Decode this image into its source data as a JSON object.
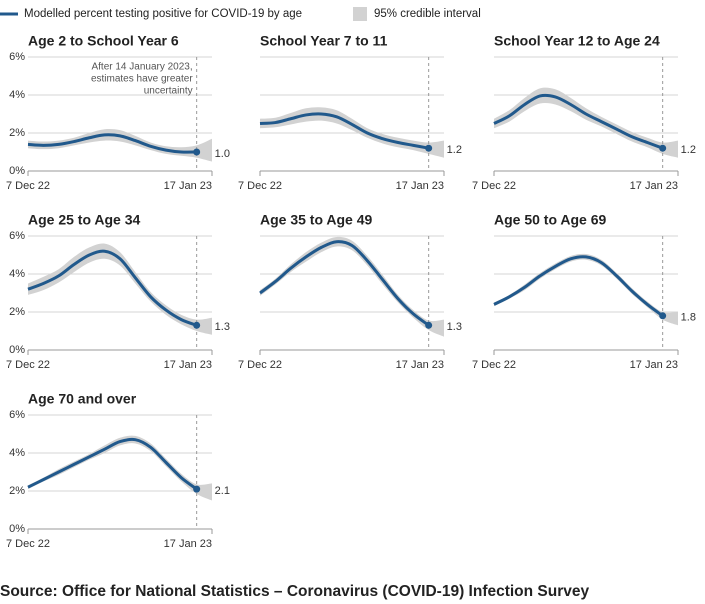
{
  "legend": [
    {
      "name": "Modelled percent testing positive for COVID-19 by age",
      "color": "#21598c"
    },
    {
      "name": "95% credible interval",
      "color": "#d2d2d2"
    }
  ],
  "chart_data": [
    {
      "type": "line",
      "title": "Age 2 to School Year 6",
      "categories": [
        "7 Dec 22",
        null,
        null,
        null,
        null,
        null,
        null,
        null,
        null,
        null,
        null,
        null,
        "17 Jan 23"
      ],
      "values": [
        1.4,
        1.35,
        1.4,
        1.55,
        1.75,
        1.9,
        1.85,
        1.6,
        1.3,
        1.1,
        1.0,
        1.0,
        null
      ],
      "value_labels": [
        null,
        null,
        null,
        null,
        null,
        null,
        null,
        null,
        null,
        null,
        null,
        "1.0",
        null
      ],
      "lower": [
        1.2,
        1.15,
        1.2,
        1.35,
        1.5,
        1.6,
        1.55,
        1.35,
        1.1,
        0.9,
        0.8,
        0.7,
        0.5
      ],
      "upper": [
        1.6,
        1.55,
        1.6,
        1.75,
        2.0,
        2.2,
        2.15,
        1.85,
        1.5,
        1.3,
        1.25,
        1.35,
        1.7
      ],
      "annotation": [
        "After 14 January 2023,",
        "estimates have greater",
        "uncertainty"
      ],
      "ylim": [
        0,
        6
      ],
      "yticks": [
        {
          "value": 0,
          "label": "0%"
        },
        {
          "value": 2,
          "label": "2%"
        },
        {
          "value": 4,
          "label": "4%"
        },
        {
          "value": 6,
          "label": "6%"
        }
      ]
    },
    {
      "type": "line",
      "title": "School Year 7 to 11",
      "categories": [
        "7 Dec 22",
        null,
        null,
        null,
        null,
        null,
        null,
        null,
        null,
        null,
        null,
        null,
        "17 Jan 23"
      ],
      "values": [
        2.5,
        2.55,
        2.75,
        2.95,
        3.0,
        2.85,
        2.45,
        2.0,
        1.7,
        1.5,
        1.35,
        1.2,
        null
      ],
      "lower": [
        2.25,
        2.3,
        2.45,
        2.6,
        2.65,
        2.5,
        2.15,
        1.75,
        1.45,
        1.25,
        1.1,
        0.9,
        0.7
      ],
      "upper": [
        2.75,
        2.8,
        3.05,
        3.3,
        3.35,
        3.2,
        2.75,
        2.25,
        1.95,
        1.75,
        1.6,
        1.5,
        1.6
      ],
      "ylim": [
        0,
        6
      ],
      "yticks": [
        0,
        2,
        4,
        6
      ]
    },
    {
      "type": "line",
      "title": "School Year 12 to Age 24",
      "categories": [
        "7 Dec 22",
        null,
        null,
        null,
        null,
        null,
        null,
        null,
        null,
        null,
        null,
        null,
        "17 Jan 23"
      ],
      "values": [
        2.5,
        2.9,
        3.5,
        3.95,
        3.9,
        3.5,
        3.0,
        2.6,
        2.2,
        1.8,
        1.5,
        1.2,
        null
      ],
      "lower": [
        2.25,
        2.6,
        3.15,
        3.55,
        3.5,
        3.15,
        2.7,
        2.35,
        1.95,
        1.55,
        1.25,
        0.9,
        0.7
      ],
      "upper": [
        2.75,
        3.2,
        3.85,
        4.35,
        4.3,
        3.85,
        3.3,
        2.85,
        2.45,
        2.05,
        1.75,
        1.5,
        1.6
      ],
      "ylim": [
        0,
        6
      ],
      "yticks": [
        0,
        2,
        4,
        6
      ]
    },
    {
      "type": "line",
      "title": "Age 25 to Age 34",
      "categories": [
        "7 Dec 22",
        null,
        null,
        null,
        null,
        null,
        null,
        null,
        null,
        null,
        null,
        null,
        "17 Jan 23"
      ],
      "values": [
        3.2,
        3.5,
        3.9,
        4.5,
        5.0,
        5.2,
        4.8,
        3.8,
        2.8,
        2.1,
        1.6,
        1.3,
        null
      ],
      "lower": [
        2.9,
        3.15,
        3.55,
        4.1,
        4.6,
        4.8,
        4.45,
        3.5,
        2.55,
        1.85,
        1.35,
        1.0,
        0.8
      ],
      "upper": [
        3.5,
        3.85,
        4.25,
        4.9,
        5.4,
        5.6,
        5.15,
        4.1,
        3.05,
        2.35,
        1.85,
        1.6,
        1.7
      ],
      "ylim": [
        0,
        6
      ],
      "yticks": [
        {
          "value": 0,
          "label": "0%"
        },
        {
          "value": 2,
          "label": "2%"
        },
        {
          "value": 4,
          "label": "4%"
        },
        {
          "value": 6,
          "label": "6%"
        }
      ]
    },
    {
      "type": "line",
      "title": "Age 35 to Age 49",
      "categories": [
        "7 Dec 22",
        null,
        null,
        null,
        null,
        null,
        null,
        null,
        null,
        null,
        null,
        null,
        "17 Jan 23"
      ],
      "values": [
        3.0,
        3.6,
        4.3,
        4.9,
        5.4,
        5.7,
        5.5,
        4.7,
        3.7,
        2.7,
        1.9,
        1.3,
        null
      ],
      "lower": [
        2.85,
        3.45,
        4.1,
        4.65,
        5.15,
        5.45,
        5.25,
        4.45,
        3.45,
        2.5,
        1.7,
        1.05,
        0.7
      ],
      "upper": [
        3.15,
        3.75,
        4.5,
        5.15,
        5.65,
        5.95,
        5.75,
        4.95,
        3.95,
        2.9,
        2.1,
        1.55,
        1.6
      ],
      "ylim": [
        0,
        6
      ],
      "yticks": [
        0,
        2,
        4,
        6
      ]
    },
    {
      "type": "line",
      "title": "Age 50 to Age 69",
      "categories": [
        "7 Dec 22",
        null,
        null,
        null,
        null,
        null,
        null,
        null,
        null,
        null,
        null,
        null,
        "17 Jan 23"
      ],
      "values": [
        2.4,
        2.8,
        3.3,
        3.9,
        4.4,
        4.8,
        4.9,
        4.6,
        3.9,
        3.1,
        2.4,
        1.8,
        null
      ],
      "lower": [
        2.3,
        2.7,
        3.15,
        3.75,
        4.25,
        4.65,
        4.75,
        4.45,
        3.75,
        2.95,
        2.25,
        1.6,
        1.3
      ],
      "upper": [
        2.5,
        2.9,
        3.45,
        4.05,
        4.55,
        4.95,
        5.05,
        4.75,
        4.05,
        3.25,
        2.55,
        2.0,
        2.0
      ],
      "ylim": [
        0,
        6
      ],
      "yticks": [
        0,
        2,
        4,
        6
      ]
    },
    {
      "type": "line",
      "title": "Age 70 and over",
      "categories": [
        "7 Dec 22",
        null,
        null,
        null,
        null,
        null,
        null,
        null,
        null,
        null,
        null,
        null,
        "17 Jan 23"
      ],
      "values": [
        2.2,
        2.6,
        3.0,
        3.4,
        3.8,
        4.2,
        4.6,
        4.7,
        4.3,
        3.5,
        2.7,
        2.1,
        null
      ],
      "lower": [
        2.1,
        2.5,
        2.85,
        3.25,
        3.65,
        4.0,
        4.4,
        4.5,
        4.1,
        3.3,
        2.5,
        1.85,
        1.5
      ],
      "upper": [
        2.3,
        2.7,
        3.15,
        3.55,
        3.95,
        4.4,
        4.8,
        4.9,
        4.5,
        3.7,
        2.9,
        2.35,
        2.4
      ],
      "ylim": [
        0,
        6
      ],
      "yticks": [
        {
          "value": 0,
          "label": "0%"
        },
        {
          "value": 2,
          "label": "2%"
        },
        {
          "value": 4,
          "label": "4%"
        },
        {
          "value": 6,
          "label": "6%"
        }
      ]
    }
  ],
  "source": "Source: Office for National Statistics – Coronavirus (COVID-19) Infection Survey"
}
